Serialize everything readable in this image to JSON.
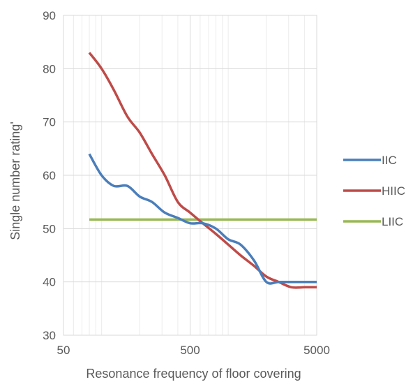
{
  "chart_data": {
    "type": "line",
    "title": "",
    "xlabel": "Resonance frequency of floor covering",
    "ylabel": "Single number rating'",
    "x_scale": "log",
    "xlim": [
      50,
      5000
    ],
    "ylim": [
      30,
      90
    ],
    "x_ticks": [
      50,
      500,
      5000
    ],
    "x_tick_labels": [
      "50",
      "500",
      "5000"
    ],
    "y_ticks": [
      30,
      40,
      50,
      60,
      70,
      80,
      90
    ],
    "y_tick_labels": [
      "30",
      "40",
      "50",
      "60",
      "70",
      "80",
      "90"
    ],
    "grid": true,
    "legend_position": "right",
    "series": [
      {
        "name": "IIC",
        "color": "#4a7ebb",
        "x": [
          80,
          100,
          125,
          160,
          200,
          250,
          315,
          400,
          500,
          630,
          800,
          1000,
          1250,
          1600,
          2000,
          2500,
          3150,
          4000,
          5000
        ],
        "y": [
          64,
          60,
          58,
          58,
          56,
          55,
          53,
          52,
          51,
          51,
          50,
          48,
          47,
          44,
          40,
          40,
          40,
          40,
          40
        ]
      },
      {
        "name": "HIIC",
        "color": "#be4b48",
        "x": [
          80,
          100,
          125,
          160,
          200,
          250,
          315,
          400,
          500,
          630,
          800,
          1000,
          1250,
          1600,
          2000,
          2500,
          3150,
          4000,
          5000
        ],
        "y": [
          83,
          80,
          76,
          71,
          68,
          64,
          60,
          55,
          53,
          51,
          49,
          47,
          45,
          43,
          41,
          40,
          39,
          39,
          39
        ]
      },
      {
        "name": "LIIC",
        "color": "#98b954",
        "x": [
          80,
          5000
        ],
        "y": [
          51.7,
          51.7
        ]
      }
    ]
  }
}
